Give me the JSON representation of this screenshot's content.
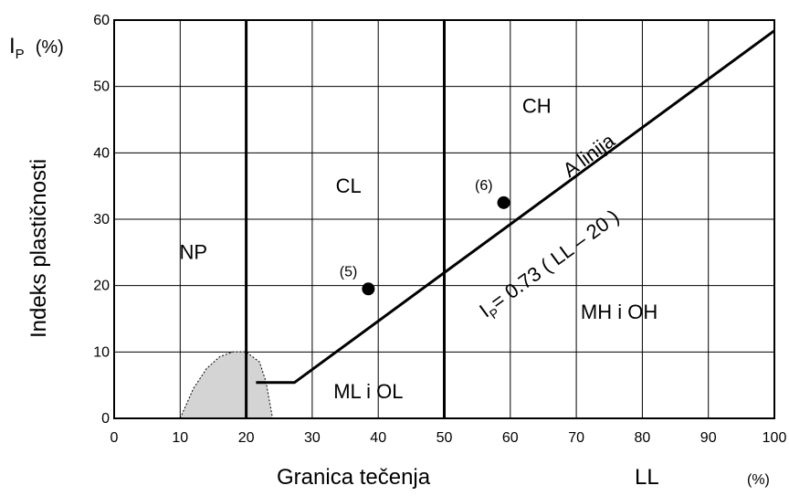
{
  "chart_data": {
    "type": "scatter",
    "chart_kind": "Casagrande plasticity chart",
    "xlabel": "Granica  tečenja",
    "x_symbol": "LL",
    "x_unit": "(%)",
    "ylabel": "Indeks plastičnosti",
    "y_symbol": "I",
    "y_symbol_sub": "P",
    "y_unit": "(%)",
    "xlim": [
      0,
      100
    ],
    "ylim": [
      0,
      60
    ],
    "x_ticks": [
      "0",
      "10",
      "20",
      "30",
      "40",
      "50",
      "60",
      "70",
      "80",
      "90",
      "100"
    ],
    "y_ticks": [
      "0",
      "10",
      "20",
      "30",
      "40",
      "50",
      "60"
    ],
    "grid": true,
    "boundaries": [
      {
        "name": "LL = 20",
        "x": [
          20,
          20
        ],
        "y": [
          0,
          60
        ]
      },
      {
        "name": "LL = 50",
        "x": [
          50,
          50
        ],
        "y": [
          0,
          60
        ]
      }
    ],
    "a_line": {
      "label_top": "A linija",
      "eq_prefix": "I",
      "eq_sub": "P",
      "eq_rest": "= 0.73 ( LL – 20 )",
      "points": [
        [
          21.5,
          5.4
        ],
        [
          27.3,
          5.4
        ],
        [
          100,
          58.4
        ]
      ]
    },
    "shaded_region": {
      "description_x": [
        10,
        12,
        14,
        16,
        18,
        20,
        22,
        23,
        24
      ],
      "description_y": [
        0,
        4.5,
        7.5,
        9.3,
        10,
        10,
        8.5,
        5.5,
        0
      ]
    },
    "points": [
      {
        "label": "(5)",
        "x": 38.5,
        "y": 19.5
      },
      {
        "label": "(6)",
        "x": 59,
        "y": 32.5
      }
    ],
    "regions": [
      {
        "label": "NP",
        "x": 12,
        "y": 24
      },
      {
        "label": "CL",
        "x": 35.5,
        "y": 34
      },
      {
        "label": "CH",
        "x": 64,
        "y": 46
      },
      {
        "label": "ML i OL",
        "x": 38.5,
        "y": 3
      },
      {
        "label": "MH i OH",
        "x": 76.5,
        "y": 15
      }
    ]
  }
}
